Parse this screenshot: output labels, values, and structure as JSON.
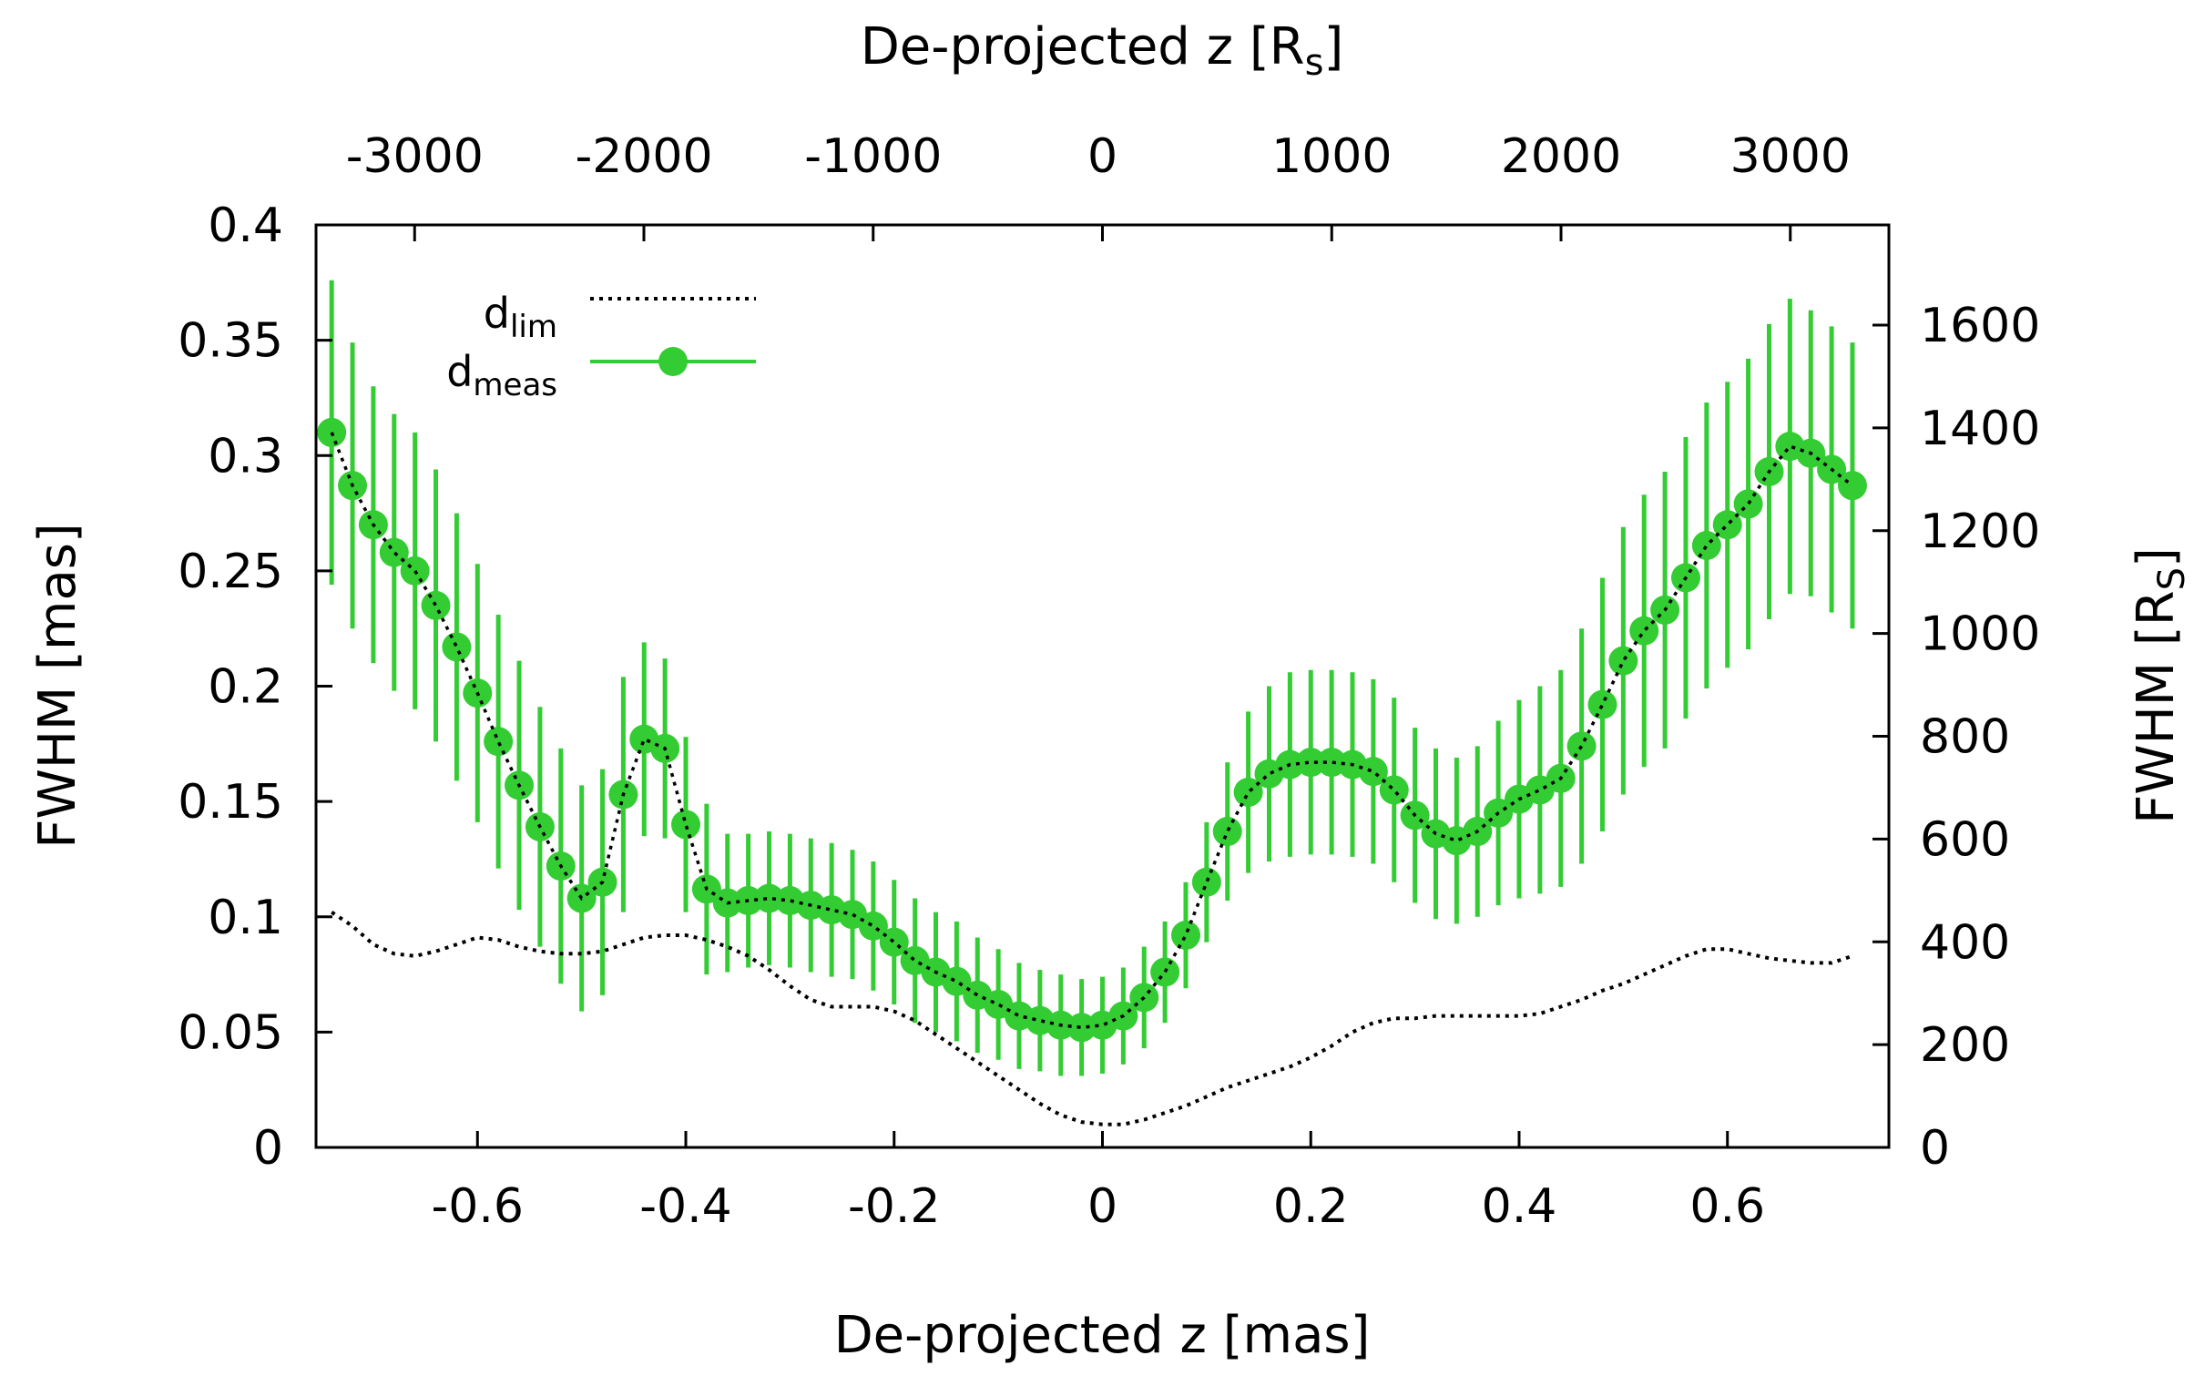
{
  "chart_data": {
    "type": "line",
    "xlabel": "De-projected z [mas]",
    "ylabel": "FWHM [mas]",
    "x2label": "De-projected z [R",
    "x2label_sub": "s",
    "x2label_close": "]",
    "y2label": "FWHM [R",
    "y2label_sub": "S",
    "y2label_close": "]",
    "xlim": [
      -0.755,
      0.755
    ],
    "ylim": [
      0,
      0.4
    ],
    "x2lim": [
      -3430,
      3430
    ],
    "y2lim": [
      0,
      1795
    ],
    "x_ticks": [
      "-0.6",
      "-0.4",
      "-0.2",
      "0",
      "0.2",
      "0.4",
      "0.6"
    ],
    "y_ticks": [
      "0",
      "0.05",
      "0.1",
      "0.15",
      "0.2",
      "0.25",
      "0.3",
      "0.35",
      "0.4"
    ],
    "x2_ticks": [
      "-3000",
      "-2000",
      "-1000",
      "0",
      "1000",
      "2000",
      "3000"
    ],
    "y2_ticks": [
      "0",
      "200",
      "400",
      "600",
      "800",
      "1000",
      "1200",
      "1400",
      "1600"
    ],
    "grid": false,
    "legend_position": "top-left",
    "series": [
      {
        "name": "d",
        "name_sub": "lim",
        "style": "dotted",
        "color": "#000000",
        "x": [
          -0.74,
          -0.72,
          -0.7,
          -0.68,
          -0.66,
          -0.64,
          -0.62,
          -0.6,
          -0.58,
          -0.56,
          -0.54,
          -0.52,
          -0.5,
          -0.48,
          -0.46,
          -0.44,
          -0.42,
          -0.4,
          -0.38,
          -0.36,
          -0.34,
          -0.32,
          -0.3,
          -0.28,
          -0.26,
          -0.24,
          -0.22,
          -0.2,
          -0.18,
          -0.16,
          -0.14,
          -0.12,
          -0.1,
          -0.08,
          -0.06,
          -0.04,
          -0.02,
          0.0,
          0.02,
          0.04,
          0.06,
          0.08,
          0.1,
          0.12,
          0.14,
          0.16,
          0.18,
          0.2,
          0.22,
          0.24,
          0.26,
          0.28,
          0.3,
          0.32,
          0.34,
          0.36,
          0.38,
          0.4,
          0.42,
          0.44,
          0.46,
          0.48,
          0.5,
          0.52,
          0.54,
          0.56,
          0.58,
          0.6,
          0.62,
          0.64,
          0.66,
          0.68,
          0.7,
          0.72
        ],
        "y": [
          0.102,
          0.096,
          0.088,
          0.084,
          0.083,
          0.085,
          0.088,
          0.091,
          0.09,
          0.087,
          0.085,
          0.084,
          0.084,
          0.085,
          0.088,
          0.091,
          0.092,
          0.092,
          0.09,
          0.087,
          0.083,
          0.077,
          0.07,
          0.064,
          0.061,
          0.061,
          0.061,
          0.059,
          0.055,
          0.049,
          0.043,
          0.037,
          0.031,
          0.025,
          0.019,
          0.014,
          0.011,
          0.01,
          0.01,
          0.012,
          0.015,
          0.018,
          0.022,
          0.026,
          0.029,
          0.032,
          0.035,
          0.039,
          0.044,
          0.05,
          0.054,
          0.056,
          0.056,
          0.057,
          0.057,
          0.057,
          0.057,
          0.057,
          0.058,
          0.061,
          0.064,
          0.068,
          0.071,
          0.075,
          0.079,
          0.083,
          0.086,
          0.086,
          0.084,
          0.082,
          0.081,
          0.08,
          0.08,
          0.083
        ]
      },
      {
        "name": "d",
        "name_sub": "meas",
        "style": "points-with-errorbars",
        "color": "#33cc33",
        "x": [
          -0.74,
          -0.72,
          -0.7,
          -0.68,
          -0.66,
          -0.64,
          -0.62,
          -0.6,
          -0.58,
          -0.56,
          -0.54,
          -0.52,
          -0.5,
          -0.48,
          -0.46,
          -0.44,
          -0.42,
          -0.4,
          -0.38,
          -0.36,
          -0.34,
          -0.32,
          -0.3,
          -0.28,
          -0.26,
          -0.24,
          -0.22,
          -0.2,
          -0.18,
          -0.16,
          -0.14,
          -0.12,
          -0.1,
          -0.08,
          -0.06,
          -0.04,
          -0.02,
          0.0,
          0.02,
          0.04,
          0.06,
          0.08,
          0.1,
          0.12,
          0.14,
          0.16,
          0.18,
          0.2,
          0.22,
          0.24,
          0.26,
          0.28,
          0.3,
          0.32,
          0.34,
          0.36,
          0.38,
          0.4,
          0.42,
          0.44,
          0.46,
          0.48,
          0.5,
          0.52,
          0.54,
          0.56,
          0.58,
          0.6,
          0.62,
          0.64,
          0.66,
          0.68,
          0.7,
          0.72
        ],
        "y": [
          0.31,
          0.287,
          0.27,
          0.258,
          0.25,
          0.235,
          0.217,
          0.197,
          0.176,
          0.157,
          0.139,
          0.122,
          0.108,
          0.115,
          0.153,
          0.177,
          0.173,
          0.14,
          0.112,
          0.106,
          0.107,
          0.108,
          0.107,
          0.105,
          0.103,
          0.101,
          0.096,
          0.089,
          0.081,
          0.076,
          0.072,
          0.066,
          0.062,
          0.057,
          0.055,
          0.053,
          0.052,
          0.053,
          0.057,
          0.065,
          0.076,
          0.092,
          0.115,
          0.137,
          0.154,
          0.162,
          0.166,
          0.167,
          0.167,
          0.166,
          0.163,
          0.155,
          0.144,
          0.136,
          0.133,
          0.137,
          0.145,
          0.151,
          0.155,
          0.16,
          0.174,
          0.192,
          0.211,
          0.224,
          0.233,
          0.247,
          0.261,
          0.27,
          0.279,
          0.293,
          0.304,
          0.301,
          0.294,
          0.287
        ],
        "err": [
          0.066,
          0.062,
          0.06,
          0.06,
          0.06,
          0.059,
          0.058,
          0.056,
          0.055,
          0.054,
          0.052,
          0.051,
          0.049,
          0.049,
          0.051,
          0.042,
          0.039,
          0.038,
          0.037,
          0.03,
          0.029,
          0.029,
          0.029,
          0.029,
          0.029,
          0.028,
          0.028,
          0.027,
          0.027,
          0.026,
          0.026,
          0.025,
          0.024,
          0.023,
          0.022,
          0.022,
          0.021,
          0.021,
          0.021,
          0.022,
          0.022,
          0.023,
          0.026,
          0.03,
          0.035,
          0.038,
          0.04,
          0.04,
          0.04,
          0.04,
          0.04,
          0.04,
          0.038,
          0.037,
          0.036,
          0.037,
          0.04,
          0.043,
          0.045,
          0.047,
          0.051,
          0.055,
          0.058,
          0.059,
          0.06,
          0.061,
          0.062,
          0.062,
          0.063,
          0.064,
          0.064,
          0.062,
          0.062,
          0.062
        ]
      }
    ]
  }
}
